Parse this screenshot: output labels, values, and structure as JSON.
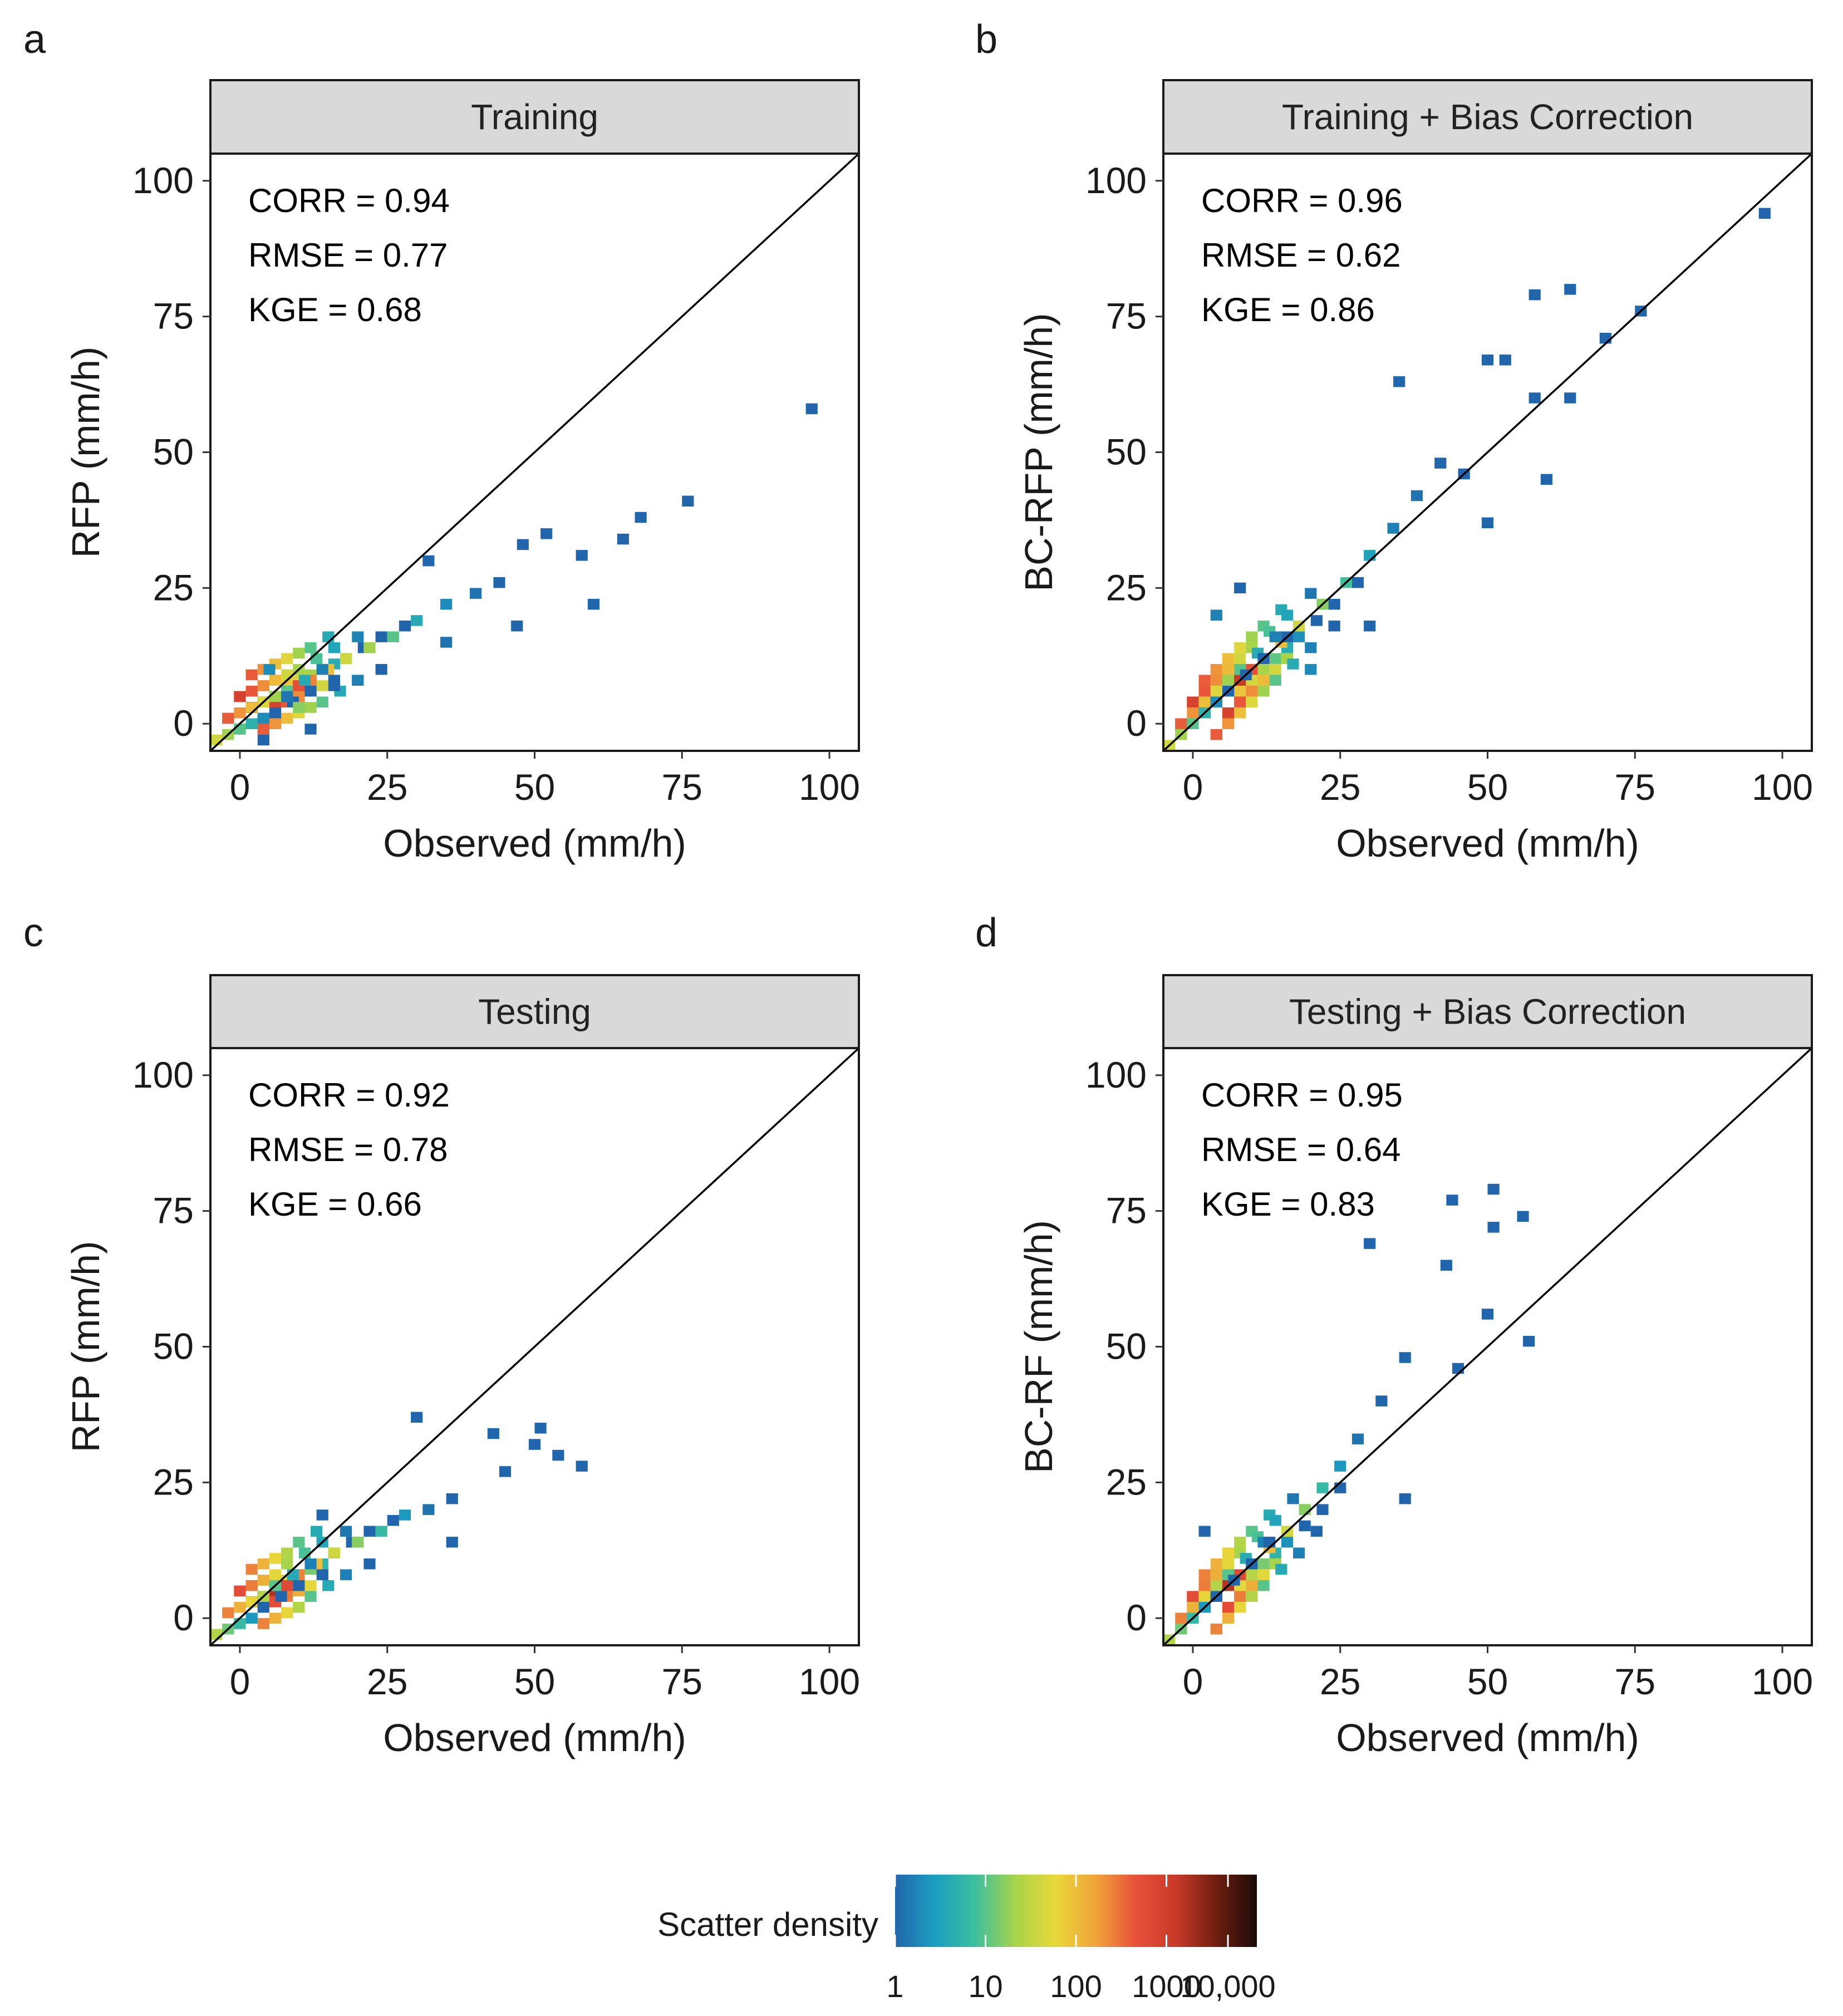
{
  "legend": {
    "title": "Scatter density",
    "tick_labels": [
      "1",
      "10",
      "100",
      "1000",
      "10,000"
    ],
    "colors": [
      "#2166ac",
      "#1b9fc0",
      "#3dbf9e",
      "#a8d44a",
      "#e8d83a",
      "#f0a33a",
      "#e8503a",
      "#c83a28",
      "#6e1e10",
      "#1a0a08"
    ]
  },
  "chart_data": [
    {
      "type": "heatmap",
      "panel_label": "a",
      "title": "Training",
      "xlabel": "Observed (mm/h)",
      "ylabel": "RFP (mm/h)",
      "xlim": [
        -5,
        105
      ],
      "ylim": [
        -5,
        105
      ],
      "x_ticks": [
        "0",
        "25",
        "50",
        "75",
        "100"
      ],
      "y_ticks": [
        "0",
        "25",
        "50",
        "75",
        "100"
      ],
      "stats": [
        "CORR = 0.94",
        "RMSE = 0.77",
        "KGE   = 0.68"
      ],
      "cells": [
        {
          "x": 2,
          "y": 3,
          "d": 4
        },
        {
          "x": 4,
          "y": 4,
          "d": 3.7
        },
        {
          "x": 6,
          "y": 5,
          "d": 3.4
        },
        {
          "x": 8,
          "y": 6,
          "d": 3.1
        },
        {
          "x": 10,
          "y": 7,
          "d": 2.7
        },
        {
          "x": 12,
          "y": 8,
          "d": 2.4
        },
        {
          "x": 15,
          "y": 10,
          "d": 2
        },
        {
          "x": 18,
          "y": 12,
          "d": 1.6
        },
        {
          "x": 22,
          "y": 14,
          "d": 1.3
        },
        {
          "x": 26,
          "y": 16,
          "d": 1
        },
        {
          "x": 30,
          "y": 19,
          "d": 0.6
        },
        {
          "x": 35,
          "y": 22,
          "d": 0.3
        },
        {
          "x": 40,
          "y": 24,
          "d": 0.1
        },
        {
          "x": 44,
          "y": 26,
          "d": 0
        },
        {
          "x": 48,
          "y": 33,
          "d": 0
        },
        {
          "x": 52,
          "y": 35,
          "d": 0
        },
        {
          "x": 58,
          "y": 31,
          "d": 0
        },
        {
          "x": 60,
          "y": 22,
          "d": 0
        },
        {
          "x": 65,
          "y": 34,
          "d": 0
        },
        {
          "x": 68,
          "y": 38,
          "d": 0
        },
        {
          "x": 76,
          "y": 41,
          "d": 0
        },
        {
          "x": 97,
          "y": 58,
          "d": 0
        },
        {
          "x": 5,
          "y": 10,
          "d": 0.3
        },
        {
          "x": 10,
          "y": 3,
          "d": 1.2
        },
        {
          "x": 20,
          "y": 8,
          "d": 0.2
        },
        {
          "x": 32,
          "y": 30,
          "d": 0
        },
        {
          "x": 35,
          "y": 15,
          "d": 0.1
        },
        {
          "x": 47,
          "y": 18,
          "d": 0
        }
      ]
    },
    {
      "type": "heatmap",
      "panel_label": "b",
      "title": "Training + Bias Correction",
      "xlabel": "Observed (mm/h)",
      "ylabel": "BC-RFP (mm/h)",
      "xlim": [
        -5,
        105
      ],
      "ylim": [
        -5,
        105
      ],
      "x_ticks": [
        "0",
        "25",
        "50",
        "75",
        "100"
      ],
      "y_ticks": [
        "0",
        "25",
        "50",
        "75",
        "100"
      ],
      "stats": [
        "CORR = 0.96",
        "RMSE = 0.62",
        "KGE   = 0.86"
      ],
      "cells": [
        {
          "x": 2,
          "y": 2,
          "d": 4
        },
        {
          "x": 4,
          "y": 4,
          "d": 3.7
        },
        {
          "x": 6,
          "y": 6,
          "d": 3.4
        },
        {
          "x": 8,
          "y": 8,
          "d": 3.1
        },
        {
          "x": 10,
          "y": 10,
          "d": 2.7
        },
        {
          "x": 12,
          "y": 12,
          "d": 2.4
        },
        {
          "x": 15,
          "y": 15,
          "d": 2
        },
        {
          "x": 18,
          "y": 18,
          "d": 1.6
        },
        {
          "x": 22,
          "y": 22,
          "d": 1.2
        },
        {
          "x": 26,
          "y": 26,
          "d": 0.9
        },
        {
          "x": 30,
          "y": 31,
          "d": 0.5
        },
        {
          "x": 34,
          "y": 36,
          "d": 0.2
        },
        {
          "x": 38,
          "y": 42,
          "d": 0.1
        },
        {
          "x": 42,
          "y": 48,
          "d": 0
        },
        {
          "x": 46,
          "y": 46,
          "d": 0
        },
        {
          "x": 50,
          "y": 67,
          "d": 0
        },
        {
          "x": 53,
          "y": 67,
          "d": 0
        },
        {
          "x": 58,
          "y": 79,
          "d": 0
        },
        {
          "x": 64,
          "y": 80,
          "d": 0
        },
        {
          "x": 58,
          "y": 60,
          "d": 0
        },
        {
          "x": 64,
          "y": 60,
          "d": 0
        },
        {
          "x": 60,
          "y": 45,
          "d": 0
        },
        {
          "x": 50,
          "y": 37,
          "d": 0
        },
        {
          "x": 70,
          "y": 71,
          "d": 0
        },
        {
          "x": 76,
          "y": 76,
          "d": 0
        },
        {
          "x": 97,
          "y": 94,
          "d": 0
        },
        {
          "x": 35,
          "y": 63,
          "d": 0
        },
        {
          "x": 30,
          "y": 18,
          "d": 0
        },
        {
          "x": 4,
          "y": 20,
          "d": 0.2
        },
        {
          "x": 8,
          "y": 25,
          "d": 0
        },
        {
          "x": 20,
          "y": 10,
          "d": 0.3
        }
      ]
    },
    {
      "type": "heatmap",
      "panel_label": "c",
      "title": "Testing",
      "xlabel": "Observed (mm/h)",
      "ylabel": "RFP (mm/h)",
      "xlim": [
        -5,
        105
      ],
      "ylim": [
        -5,
        105
      ],
      "x_ticks": [
        "0",
        "25",
        "50",
        "75",
        "100"
      ],
      "y_ticks": [
        "0",
        "25",
        "50",
        "75",
        "100"
      ],
      "stats": [
        "CORR = 0.92",
        "RMSE = 0.78",
        "KGE   = 0.66"
      ],
      "cells": [
        {
          "x": 2,
          "y": 3,
          "d": 3.8
        },
        {
          "x": 4,
          "y": 4,
          "d": 3.5
        },
        {
          "x": 6,
          "y": 5,
          "d": 3.2
        },
        {
          "x": 8,
          "y": 6,
          "d": 2.8
        },
        {
          "x": 10,
          "y": 8,
          "d": 2.4
        },
        {
          "x": 13,
          "y": 10,
          "d": 2
        },
        {
          "x": 16,
          "y": 12,
          "d": 1.6
        },
        {
          "x": 20,
          "y": 14,
          "d": 1.2
        },
        {
          "x": 24,
          "y": 16,
          "d": 0.8
        },
        {
          "x": 28,
          "y": 19,
          "d": 0.4
        },
        {
          "x": 32,
          "y": 20,
          "d": 0.1
        },
        {
          "x": 36,
          "y": 22,
          "d": 0
        },
        {
          "x": 30,
          "y": 37,
          "d": 0
        },
        {
          "x": 43,
          "y": 34,
          "d": 0
        },
        {
          "x": 45,
          "y": 27,
          "d": 0
        },
        {
          "x": 51,
          "y": 35,
          "d": 0
        },
        {
          "x": 54,
          "y": 30,
          "d": 0
        },
        {
          "x": 58,
          "y": 28,
          "d": 0
        },
        {
          "x": 14,
          "y": 19,
          "d": 0
        },
        {
          "x": 36,
          "y": 14,
          "d": 0
        },
        {
          "x": 50,
          "y": 32,
          "d": 0
        }
      ]
    },
    {
      "type": "heatmap",
      "panel_label": "d",
      "title": "Testing + Bias Correction",
      "xlabel": "Observed (mm/h)",
      "ylabel": "BC-RF (mm/h)",
      "xlim": [
        -5,
        105
      ],
      "ylim": [
        -5,
        105
      ],
      "x_ticks": [
        "0",
        "25",
        "50",
        "75",
        "100"
      ],
      "y_ticks": [
        "0",
        "25",
        "50",
        "75",
        "100"
      ],
      "stats": [
        "CORR = 0.95",
        "RMSE = 0.64",
        "KGE   = 0.83"
      ],
      "cells": [
        {
          "x": 2,
          "y": 2,
          "d": 3.8
        },
        {
          "x": 4,
          "y": 4,
          "d": 3.5
        },
        {
          "x": 6,
          "y": 6,
          "d": 3.2
        },
        {
          "x": 8,
          "y": 8,
          "d": 2.8
        },
        {
          "x": 10,
          "y": 10,
          "d": 2.4
        },
        {
          "x": 13,
          "y": 13,
          "d": 2
        },
        {
          "x": 16,
          "y": 16,
          "d": 1.6
        },
        {
          "x": 19,
          "y": 20,
          "d": 1.2
        },
        {
          "x": 22,
          "y": 24,
          "d": 0.8
        },
        {
          "x": 25,
          "y": 28,
          "d": 0.4
        },
        {
          "x": 28,
          "y": 33,
          "d": 0.1
        },
        {
          "x": 32,
          "y": 40,
          "d": 0
        },
        {
          "x": 36,
          "y": 48,
          "d": 0
        },
        {
          "x": 30,
          "y": 69,
          "d": 0
        },
        {
          "x": 43,
          "y": 65,
          "d": 0
        },
        {
          "x": 44,
          "y": 77,
          "d": 0
        },
        {
          "x": 51,
          "y": 79,
          "d": 0
        },
        {
          "x": 51,
          "y": 72,
          "d": 0
        },
        {
          "x": 56,
          "y": 74,
          "d": 0
        },
        {
          "x": 57,
          "y": 51,
          "d": 0
        },
        {
          "x": 50,
          "y": 56,
          "d": 0
        },
        {
          "x": 45,
          "y": 46,
          "d": 0
        },
        {
          "x": 36,
          "y": 22,
          "d": 0
        },
        {
          "x": 2,
          "y": 16,
          "d": 0
        }
      ]
    }
  ]
}
